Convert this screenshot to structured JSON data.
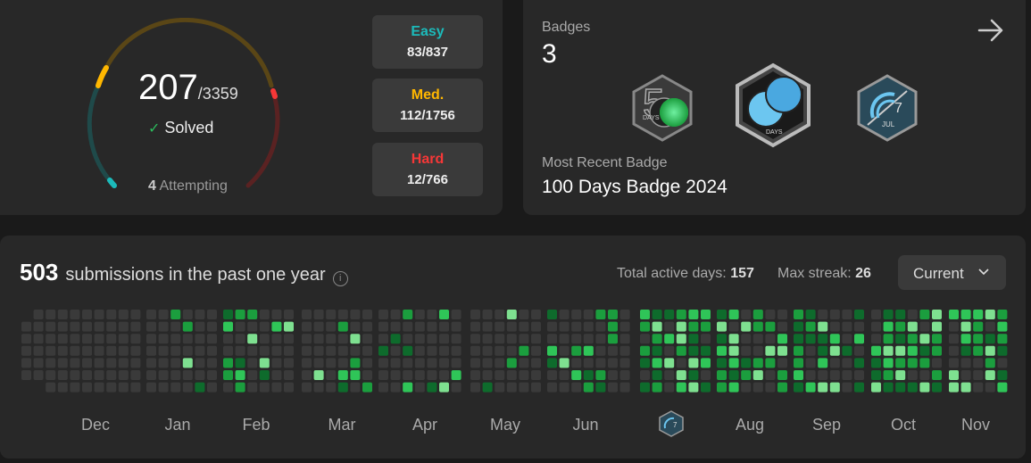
{
  "progress": {
    "solved": "207",
    "total": "/3359",
    "solved_label": "Solved",
    "attempting_count": "4",
    "attempting_label": "Attempting",
    "difficulties": [
      {
        "name": "Easy",
        "value": "83/837",
        "color": "#1cbaba"
      },
      {
        "name": "Med.",
        "value": "112/1756",
        "color": "#ffb700"
      },
      {
        "name": "Hard",
        "value": "12/766",
        "color": "#f63737"
      }
    ]
  },
  "badges": {
    "title": "Badges",
    "count": "3",
    "items": [
      {
        "icon": "50-days-badge-icon",
        "label": "DAYS"
      },
      {
        "icon": "100-days-badge-icon",
        "label": "DAYS"
      },
      {
        "icon": "july-badge-icon",
        "label": "JUL",
        "number": "7"
      }
    ],
    "recent_label": "Most Recent Badge",
    "recent_name": "100 Days Badge 2024"
  },
  "heatmap": {
    "count": "503",
    "title": "submissions in the past one year",
    "active_label": "Total active days:",
    "active_value": "157",
    "streak_label": "Max streak:",
    "streak_value": "26",
    "range_selected": "Current",
    "months": [
      "Dec",
      "Jan",
      "Feb",
      "Mar",
      "Apr",
      "May",
      "Jun",
      "Jul",
      "Aug",
      "Sep",
      "Oct",
      "Nov"
    ],
    "colors": [
      "#3a3a3a",
      "#0e6b2c",
      "#1b9e3e",
      "#2fc558",
      "#7ee090"
    ]
  }
}
